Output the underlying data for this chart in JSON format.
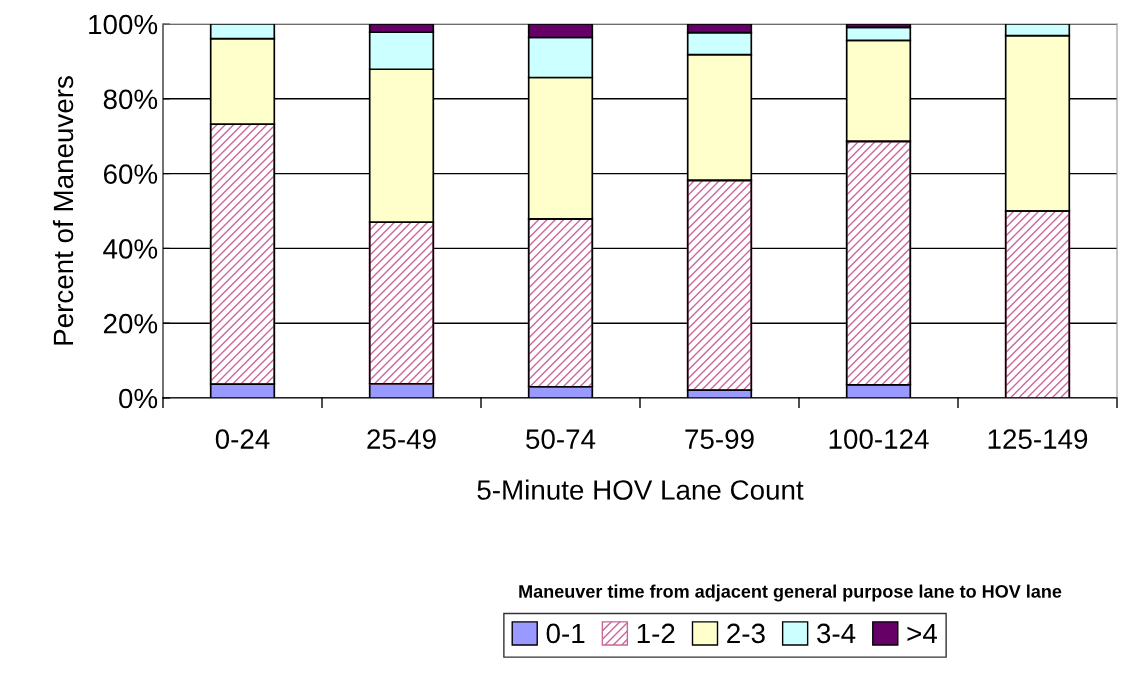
{
  "chart_data": {
    "type": "bar",
    "stacked": true,
    "xlabel": "5-Minute HOV Lane Count",
    "ylabel": "Percent of Maneuvers",
    "legend_title": "Maneuver time from adjacent general purpose lane to HOV lane",
    "legend": "bottom",
    "grid": "y",
    "categories": [
      "0-24",
      "25-49",
      "50-74",
      "75-99",
      "100-124",
      "125-149"
    ],
    "ylim": [
      0,
      100
    ],
    "yticks": [
      {
        "value": 0,
        "label": "0%"
      },
      {
        "value": 20,
        "label": "20%"
      },
      {
        "value": 40,
        "label": "40%"
      },
      {
        "value": 60,
        "label": "60%"
      },
      {
        "value": 80,
        "label": "80%"
      },
      {
        "value": 100,
        "label": "100%"
      }
    ],
    "series": [
      {
        "name": "0-1",
        "color": "#9999ff",
        "values": [
          3.7,
          3.8,
          3.0,
          2.1,
          3.5,
          0
        ]
      },
      {
        "name": "1-2",
        "color": "#cc6699",
        "values": [
          69.5,
          43.2,
          44.9,
          56.1,
          65.1,
          50.0
        ]
      },
      {
        "name": "2-3",
        "color": "#ffffcc",
        "values": [
          22.9,
          40.9,
          37.8,
          33.6,
          27.0,
          46.9
        ]
      },
      {
        "name": "3-4",
        "color": "#ccffff",
        "values": [
          3.9,
          9.9,
          10.7,
          5.9,
          3.5,
          3.1
        ]
      },
      {
        "name": ">4",
        "color": "#660066",
        "values": [
          0,
          2.2,
          3.6,
          2.3,
          0.9,
          0
        ]
      }
    ]
  }
}
